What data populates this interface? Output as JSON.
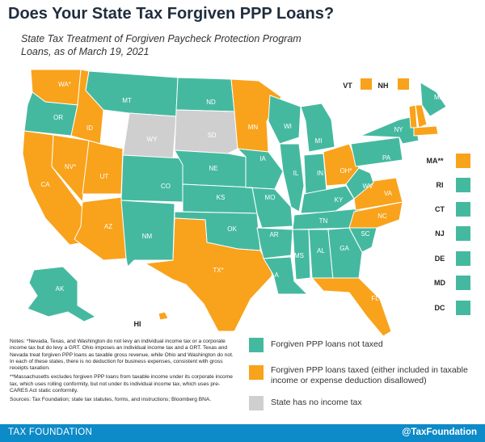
{
  "title": "Does Your State Tax Forgiven PPP Loans?",
  "subtitle": "State Tax Treatment of Forgiven Paycheck Protection Program Loans, as of March 19, 2021",
  "colors": {
    "not_taxed": "#45b9a0",
    "taxed": "#f9a21b",
    "no_income_tax": "#cfcfcf",
    "footer": "#0d8ac8"
  },
  "legend": {
    "not_taxed": "Forgiven PPP loans not taxed",
    "taxed": "Forgiven PPP loans taxed (either included in taxable income or expense deduction disallowed)",
    "no_income_tax": "State has no income tax"
  },
  "states": [
    {
      "abbr": "WA*",
      "category": "taxed"
    },
    {
      "abbr": "OR",
      "category": "not_taxed"
    },
    {
      "abbr": "CA",
      "category": "taxed"
    },
    {
      "abbr": "NV*",
      "category": "taxed"
    },
    {
      "abbr": "ID",
      "category": "taxed"
    },
    {
      "abbr": "MT",
      "category": "not_taxed"
    },
    {
      "abbr": "WY",
      "category": "no_income_tax"
    },
    {
      "abbr": "UT",
      "category": "taxed"
    },
    {
      "abbr": "AZ",
      "category": "taxed"
    },
    {
      "abbr": "CO",
      "category": "not_taxed"
    },
    {
      "abbr": "NM",
      "category": "not_taxed"
    },
    {
      "abbr": "ND",
      "category": "not_taxed"
    },
    {
      "abbr": "SD",
      "category": "no_income_tax"
    },
    {
      "abbr": "NE",
      "category": "not_taxed"
    },
    {
      "abbr": "KS",
      "category": "not_taxed"
    },
    {
      "abbr": "OK",
      "category": "not_taxed"
    },
    {
      "abbr": "TX*",
      "category": "taxed"
    },
    {
      "abbr": "MN",
      "category": "taxed"
    },
    {
      "abbr": "IA",
      "category": "not_taxed"
    },
    {
      "abbr": "MO",
      "category": "not_taxed"
    },
    {
      "abbr": "AR",
      "category": "not_taxed"
    },
    {
      "abbr": "LA",
      "category": "not_taxed"
    },
    {
      "abbr": "WI",
      "category": "not_taxed"
    },
    {
      "abbr": "IL",
      "category": "not_taxed"
    },
    {
      "abbr": "MI",
      "category": "not_taxed"
    },
    {
      "abbr": "IN",
      "category": "not_taxed"
    },
    {
      "abbr": "OH*",
      "category": "taxed"
    },
    {
      "abbr": "KY",
      "category": "not_taxed"
    },
    {
      "abbr": "TN",
      "category": "not_taxed"
    },
    {
      "abbr": "MS",
      "category": "not_taxed"
    },
    {
      "abbr": "AL",
      "category": "not_taxed"
    },
    {
      "abbr": "GA",
      "category": "not_taxed"
    },
    {
      "abbr": "FL",
      "category": "taxed"
    },
    {
      "abbr": "SC",
      "category": "not_taxed"
    },
    {
      "abbr": "NC",
      "category": "taxed"
    },
    {
      "abbr": "VA",
      "category": "taxed"
    },
    {
      "abbr": "WV",
      "category": "not_taxed"
    },
    {
      "abbr": "PA",
      "category": "not_taxed"
    },
    {
      "abbr": "NY",
      "category": "not_taxed"
    },
    {
      "abbr": "ME",
      "category": "not_taxed"
    },
    {
      "abbr": "AK",
      "category": "not_taxed"
    },
    {
      "abbr": "HI",
      "category": "taxed"
    },
    {
      "abbr": "VT",
      "category": "taxed"
    },
    {
      "abbr": "NH",
      "category": "taxed"
    },
    {
      "abbr": "MA**",
      "category": "taxed"
    },
    {
      "abbr": "RI",
      "category": "not_taxed"
    },
    {
      "abbr": "CT",
      "category": "not_taxed"
    },
    {
      "abbr": "NJ",
      "category": "not_taxed"
    },
    {
      "abbr": "DE",
      "category": "not_taxed"
    },
    {
      "abbr": "MD",
      "category": "not_taxed"
    },
    {
      "abbr": "DC",
      "category": "not_taxed"
    }
  ],
  "notes": [
    "Notes: *Nevada, Texas, and Washington do not levy an individual income tax or a corporate income tax but do levy a GRT. Ohio imposes an individual income tax and a GRT. Texas and Nevada treat forgiven PPP loans as taxable gross revenue, while Ohio and Washington do not. In each of these states, there is no deduction for business expenses, consistent with gross receipts taxation.",
    "**Massachusetts excludes forgiven PPP loans from taxable income under its corporate income tax, which uses rolling conformity, but not under its individual income tax, which uses pre-CARES Act static conformity.",
    "Sources: Tax Foundation; state tax statutes, forms, and instructions; Bloomberg BNA."
  ],
  "footer": {
    "left": "TAX FOUNDATION",
    "right": "@TaxFoundation"
  }
}
